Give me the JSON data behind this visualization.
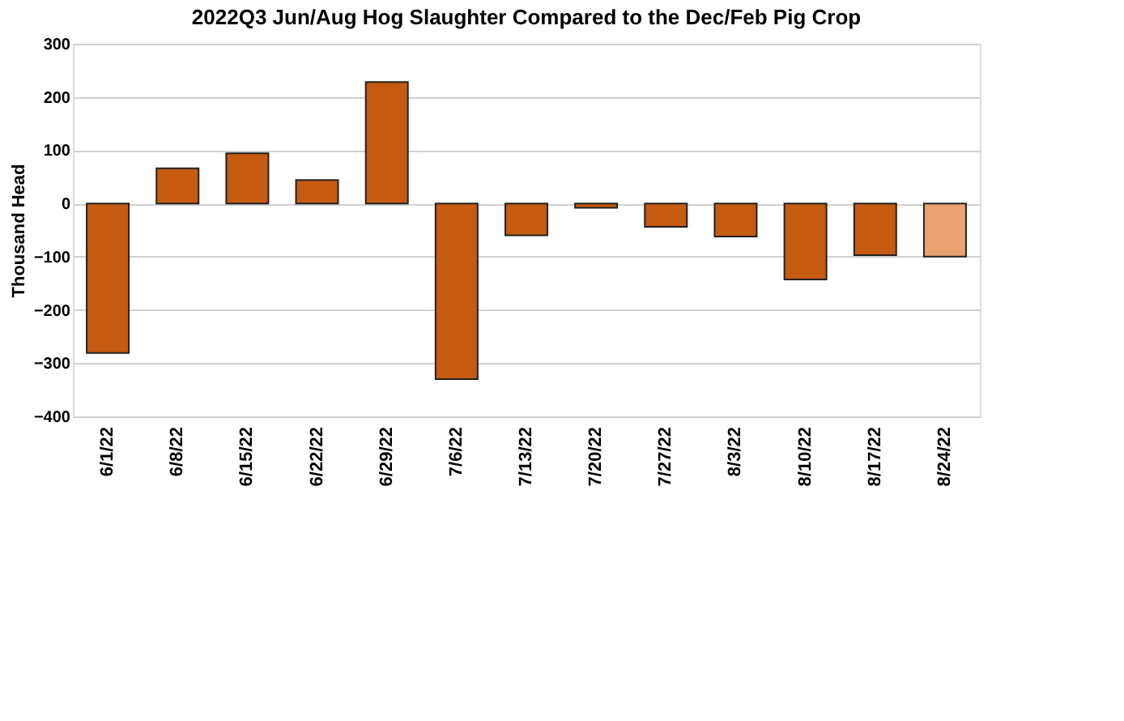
{
  "chart_data": {
    "type": "bar",
    "title": "2022Q3 Jun/Aug Hog Slaughter Compared to the Dec/Feb Pig Crop",
    "ylabel": "Thousand Head",
    "categories": [
      "6/1/22",
      "6/8/22",
      "6/15/22",
      "6/22/22",
      "6/29/22",
      "7/6/22",
      "7/13/22",
      "7/20/22",
      "7/27/22",
      "8/3/22",
      "8/10/22",
      "8/17/22",
      "8/24/22"
    ],
    "values": [
      -281,
      66,
      94,
      44,
      228,
      -330,
      -60,
      -8,
      -44,
      -62,
      -143,
      -97,
      -100
    ],
    "colors": [
      "#c55a11",
      "#c55a11",
      "#c55a11",
      "#c55a11",
      "#c55a11",
      "#c55a11",
      "#c55a11",
      "#c55a11",
      "#c55a11",
      "#c55a11",
      "#c55a11",
      "#c55a11",
      "#e9a272"
    ],
    "ylim": [
      -400,
      300
    ],
    "yticks": [
      -400,
      -300,
      -200,
      -100,
      0,
      100,
      200,
      300
    ],
    "grid": "y"
  }
}
